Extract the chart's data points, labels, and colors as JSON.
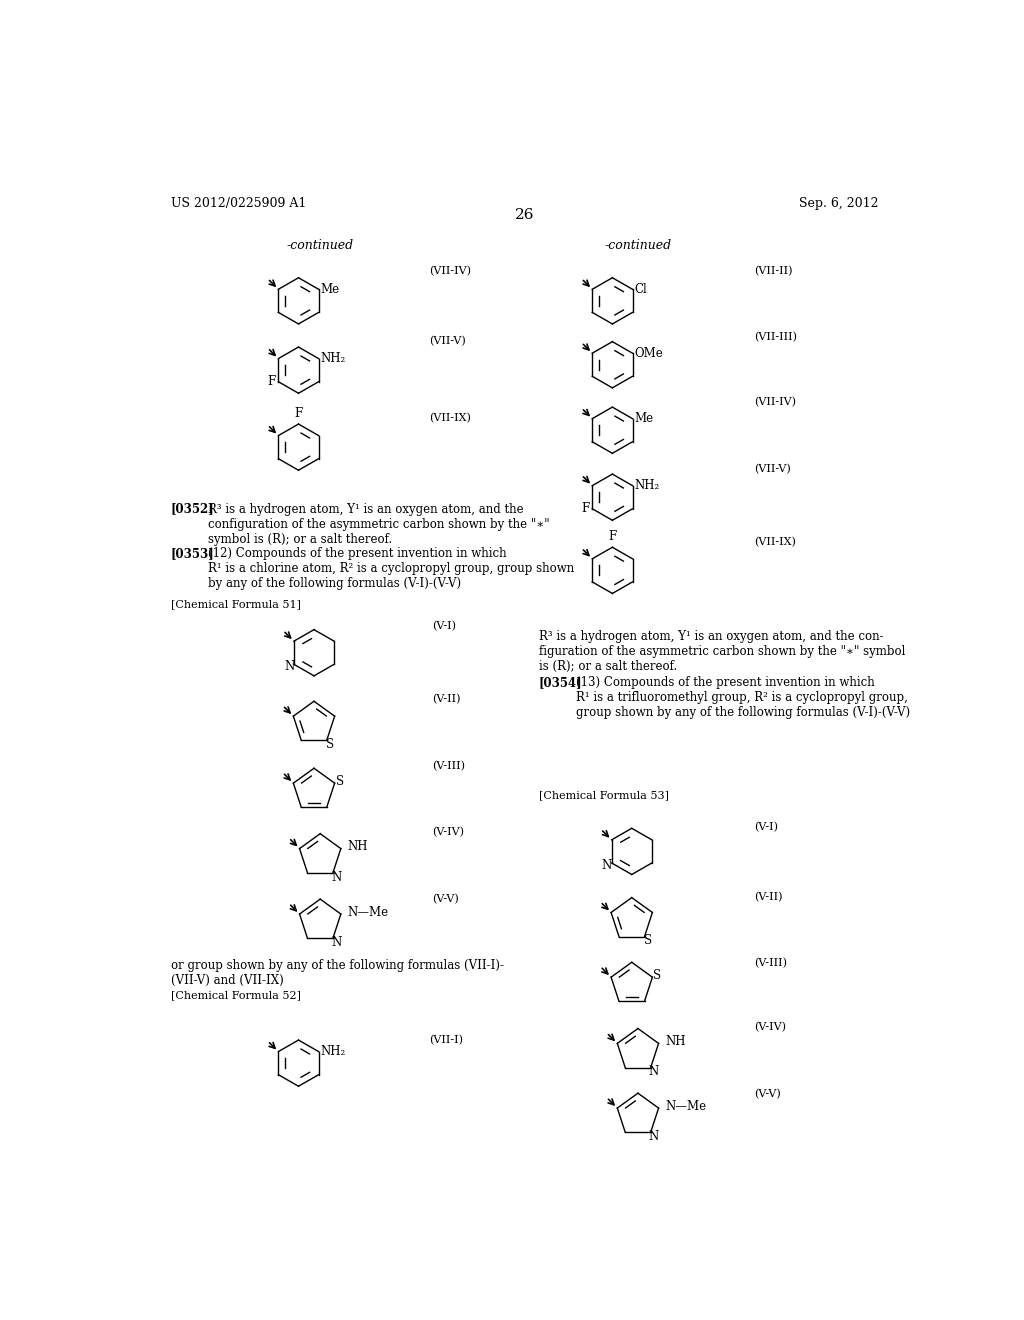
{
  "page_header_left": "US 2012/0225909 A1",
  "page_header_right": "Sep. 6, 2012",
  "page_number": "26",
  "background_color": "#ffffff",
  "fig_width": 10.24,
  "fig_height": 13.2,
  "dpi": 100
}
